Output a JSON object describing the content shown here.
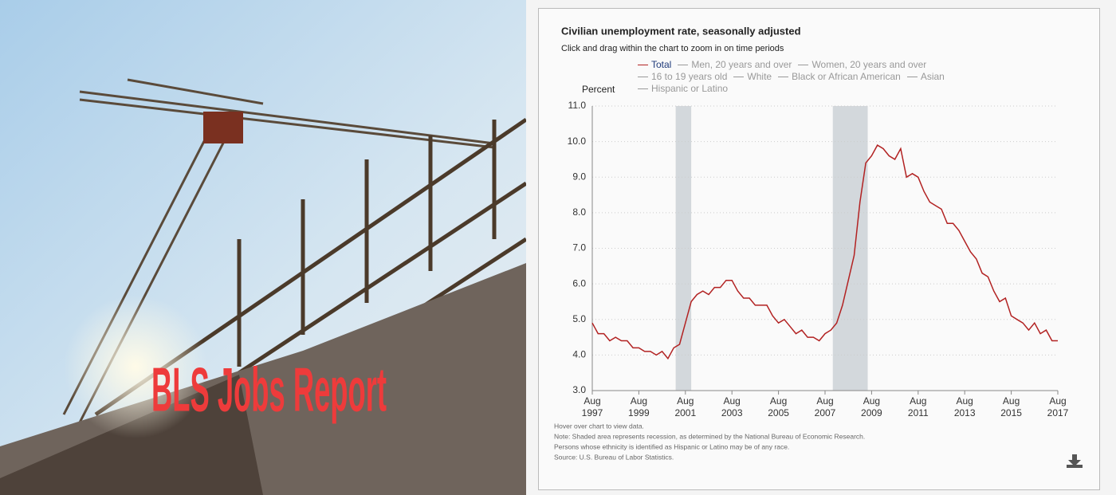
{
  "banner": {
    "title": "BLS Jobs Report"
  },
  "chart_data": {
    "type": "line",
    "title": "Civilian unemployment rate, seasonally adjusted",
    "subtitle": "Click and drag within the chart to zoom in on time periods",
    "y_label": "Percent",
    "x": [
      "1997-08",
      "1997-11",
      "1998-02",
      "1998-05",
      "1998-08",
      "1998-11",
      "1999-02",
      "1999-05",
      "1999-08",
      "1999-11",
      "2000-02",
      "2000-05",
      "2000-08",
      "2000-11",
      "2001-02",
      "2001-05",
      "2001-08",
      "2001-11",
      "2002-02",
      "2002-05",
      "2002-08",
      "2002-11",
      "2003-02",
      "2003-05",
      "2003-08",
      "2003-11",
      "2004-02",
      "2004-05",
      "2004-08",
      "2004-11",
      "2005-02",
      "2005-05",
      "2005-08",
      "2005-11",
      "2006-02",
      "2006-05",
      "2006-08",
      "2006-11",
      "2007-02",
      "2007-05",
      "2007-08",
      "2007-11",
      "2008-02",
      "2008-05",
      "2008-08",
      "2008-11",
      "2009-02",
      "2009-05",
      "2009-08",
      "2009-11",
      "2010-02",
      "2010-05",
      "2010-08",
      "2010-11",
      "2011-02",
      "2011-05",
      "2011-08",
      "2011-11",
      "2012-02",
      "2012-05",
      "2012-08",
      "2012-11",
      "2013-02",
      "2013-05",
      "2013-08",
      "2013-11",
      "2014-02",
      "2014-05",
      "2014-08",
      "2014-11",
      "2015-02",
      "2015-05",
      "2015-08",
      "2015-11",
      "2016-02",
      "2016-05",
      "2016-08",
      "2016-11",
      "2017-02",
      "2017-05",
      "2017-08"
    ],
    "series": [
      {
        "name": "Total",
        "color": "#b22222",
        "values": [
          4.9,
          4.6,
          4.6,
          4.4,
          4.5,
          4.4,
          4.4,
          4.2,
          4.2,
          4.1,
          4.1,
          4.0,
          4.1,
          3.9,
          4.2,
          4.3,
          4.9,
          5.5,
          5.7,
          5.8,
          5.7,
          5.9,
          5.9,
          6.1,
          6.1,
          5.8,
          5.6,
          5.6,
          5.4,
          5.4,
          5.4,
          5.1,
          4.9,
          5.0,
          4.8,
          4.6,
          4.7,
          4.5,
          4.5,
          4.4,
          4.6,
          4.7,
          4.9,
          5.4,
          6.1,
          6.8,
          8.3,
          9.4,
          9.6,
          9.9,
          9.8,
          9.6,
          9.5,
          9.8,
          9.0,
          9.1,
          9.0,
          8.6,
          8.3,
          8.2,
          8.1,
          7.7,
          7.7,
          7.5,
          7.2,
          6.9,
          6.7,
          6.3,
          6.2,
          5.8,
          5.5,
          5.6,
          5.1,
          5.0,
          4.9,
          4.7,
          4.9,
          4.6,
          4.7,
          4.4,
          4.4
        ]
      }
    ],
    "inactive_series": [
      "Men, 20 years and over",
      "Women, 20 years and over",
      "16 to 19 years old",
      "White",
      "Black or African American",
      "Asian",
      "Hispanic or Latino"
    ],
    "inactive_color": "#999999",
    "recessions": [
      {
        "start": "2001-03",
        "end": "2001-11"
      },
      {
        "start": "2007-12",
        "end": "2009-06"
      }
    ],
    "xlim": [
      "1997-08",
      "2017-08"
    ],
    "xticks": [
      {
        "value": "1997-08",
        "label": "Aug 1997"
      },
      {
        "value": "1999-08",
        "label": "Aug 1999"
      },
      {
        "value": "2001-08",
        "label": "Aug 2001"
      },
      {
        "value": "2003-08",
        "label": "Aug 2003"
      },
      {
        "value": "2005-08",
        "label": "Aug 2005"
      },
      {
        "value": "2007-08",
        "label": "Aug 2007"
      },
      {
        "value": "2009-08",
        "label": "Aug 2009"
      },
      {
        "value": "2011-08",
        "label": "Aug 2011"
      },
      {
        "value": "2013-08",
        "label": "Aug 2013"
      },
      {
        "value": "2015-08",
        "label": "Aug 2015"
      },
      {
        "value": "2017-08",
        "label": "Aug 2017"
      }
    ],
    "ylim": [
      3,
      11
    ],
    "yticks": [
      {
        "value": 3,
        "label": "3.0"
      },
      {
        "value": 4,
        "label": "4.0"
      },
      {
        "value": 5,
        "label": "5.0"
      },
      {
        "value": 6,
        "label": "6.0"
      },
      {
        "value": 7,
        "label": "7.0"
      },
      {
        "value": 8,
        "label": "8.0"
      },
      {
        "value": 9,
        "label": "9.0"
      },
      {
        "value": 10,
        "label": "10.0"
      },
      {
        "value": 11,
        "label": "11.0"
      }
    ],
    "grid": true,
    "notes": [
      "Hover over chart to view data.",
      "Note: Shaded area represents recession, as determined by the National Bureau of Economic Research.",
      "Persons whose ethnicity is identified as Hispanic or Latino may be of any race.",
      "Source: U.S. Bureau of Labor Statistics."
    ]
  }
}
